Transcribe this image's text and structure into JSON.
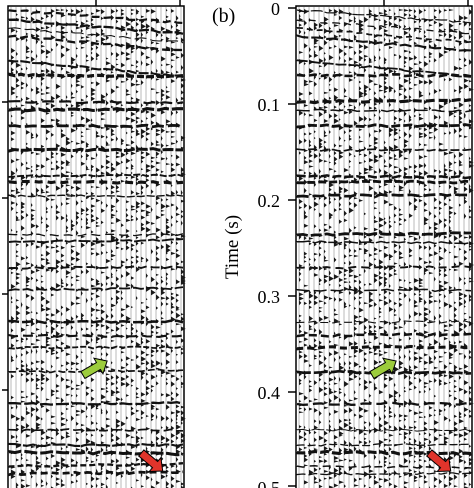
{
  "panel_b": {
    "label": "(b)",
    "axis_title": "Time (s)",
    "ticks": [
      "0",
      "0.1",
      "0.2",
      "0.3",
      "0.4",
      "0.5"
    ]
  },
  "arrows": {
    "green": {
      "color": "#9ccc3c",
      "name": "green-arrow-icon"
    },
    "red": {
      "color": "#e0342b",
      "name": "red-arrow-icon"
    }
  },
  "colors": {
    "trace": "#1a1a1a",
    "background": "#ffffff"
  }
}
